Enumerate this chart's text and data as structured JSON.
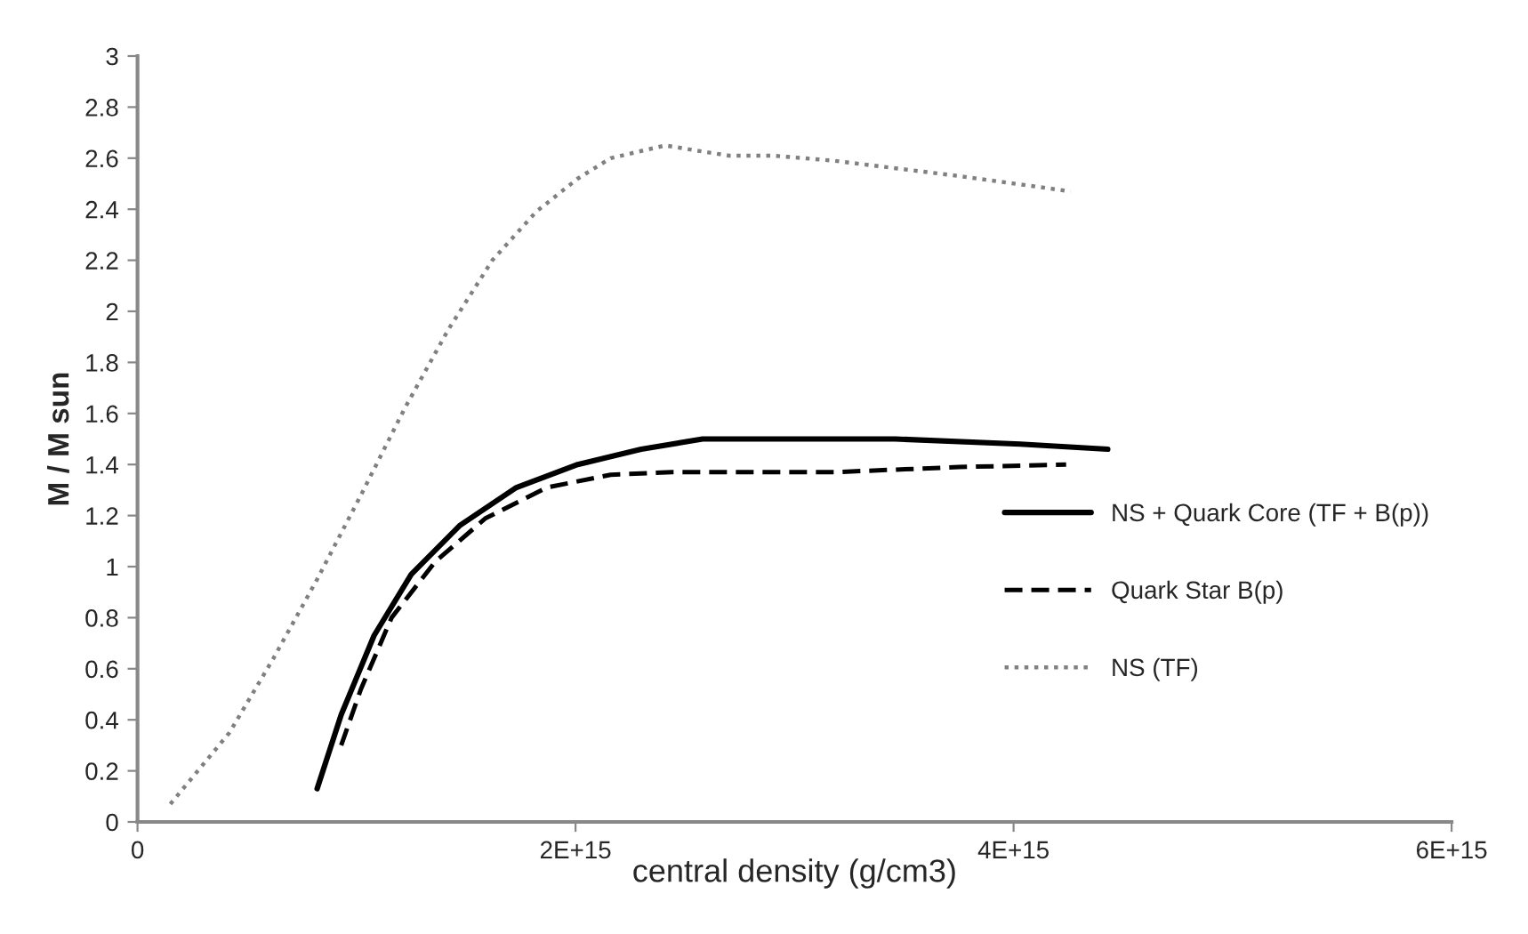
{
  "chart_data": {
    "type": "line",
    "xlabel": "central density (g/cm3)",
    "ylabel": "M / M sun",
    "xlim": [
      0,
      6000000000000000.0
    ],
    "xticks": [
      0,
      {
        "value": 2000000000000000.0,
        "label": "2E+15"
      },
      {
        "value": 4000000000000000.0,
        "label": "4E+15"
      },
      {
        "value": 6000000000000000.0,
        "label": "6E+15"
      }
    ],
    "ylim": [
      0,
      3
    ],
    "yticks": [
      0,
      0.2,
      0.4,
      0.6,
      0.8,
      1,
      1.2,
      1.4,
      1.6,
      1.8,
      2,
      2.2,
      2.4,
      2.6,
      2.8,
      3
    ],
    "grid": false,
    "legend": "right",
    "series": [
      {
        "name": "NS + Quark Core (TF + B(p))",
        "color": "#000000",
        "line_style": "solid",
        "x": [
          820000000000000.0,
          930000000000000.0,
          1080000000000000.0,
          1250000000000000.0,
          1470000000000000.0,
          1730000000000000.0,
          2010000000000000.0,
          2300000000000000.0,
          2580000000000000.0,
          3120000000000000.0,
          3460000000000000.0,
          4030000000000000.0,
          4430000000000000.0
        ],
        "values": [
          0.13,
          0.42,
          0.73,
          0.97,
          1.16,
          1.31,
          1.4,
          1.46,
          1.5,
          1.5,
          1.5,
          1.48,
          1.46
        ]
      },
      {
        "name": "Quark Star B(p)",
        "color": "#000000",
        "line_style": "dashed",
        "x": [
          930000000000000.0,
          1020000000000000.0,
          1160000000000000.0,
          1360000000000000.0,
          1590000000000000.0,
          1870000000000000.0,
          2160000000000000.0,
          2440000000000000.0,
          3120000000000000.0,
          3180000000000000.0,
          3750000000000000.0,
          4240000000000000.0
        ],
        "values": [
          0.3,
          0.52,
          0.8,
          1.02,
          1.19,
          1.31,
          1.36,
          1.37,
          1.37,
          1.37,
          1.39,
          1.4
        ]
      },
      {
        "name": "NS (TF)",
        "color": "#808080",
        "line_style": "dotted",
        "x": [
          150000000000000.0,
          420000000000000.0,
          620000000000000.0,
          820000000000000.0,
          1020000000000000.0,
          1220000000000000.0,
          1420000000000000.0,
          1620000000000000.0,
          1820000000000000.0,
          2010000000000000.0,
          2160000000000000.0,
          2410000000000000.0,
          2550000000000000.0,
          2700000000000000.0,
          2900000000000000.0,
          3180000000000000.0,
          3750000000000000.0,
          4260000000000000.0
        ],
        "values": [
          0.07,
          0.35,
          0.64,
          0.95,
          1.28,
          1.62,
          1.93,
          2.2,
          2.39,
          2.52,
          2.6,
          2.65,
          2.63,
          2.61,
          2.61,
          2.59,
          2.53,
          2.47
        ]
      }
    ]
  }
}
